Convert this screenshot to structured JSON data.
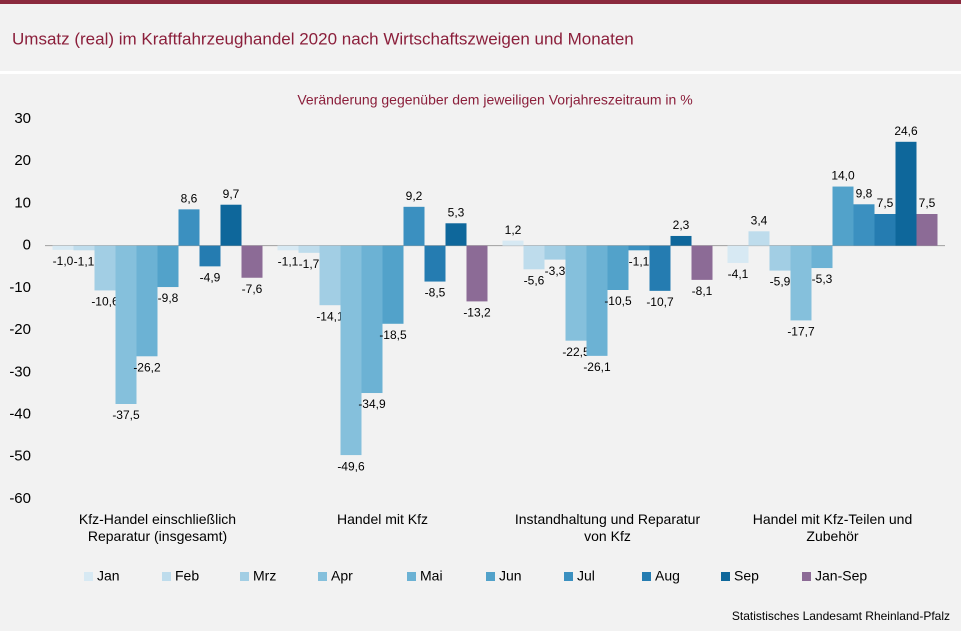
{
  "chart_data": {
    "type": "bar",
    "title": "Umsatz (real) im Kraftfahrzeughandel 2020 nach Wirtschaftszweigen und Monaten",
    "subtitle": "Veränderung gegenüber dem jeweiligen Vorjahreszeitraum in %",
    "source": "Statistisches Landesamt Rheinland-Pfalz",
    "categories": [
      "Kfz-Handel einschließlich Reparatur (insgesamt)",
      "Handel mit Kfz",
      "Instandhaltung und Reparatur von Kfz",
      "Handel mit Kfz-Teilen und Zubehör"
    ],
    "series": [
      {
        "name": "Jan",
        "color": "#d7e9f3",
        "values": [
          -1.0,
          -1.1,
          1.2,
          -4.1
        ],
        "value_labels": [
          "-1,0",
          "-1,1",
          "1,2",
          "-4,1"
        ]
      },
      {
        "name": "Feb",
        "color": "#bedcec",
        "values": [
          -1.1,
          -1.7,
          -5.6,
          3.4
        ],
        "value_labels": [
          "-1,1",
          "-1,7",
          "-5,6",
          "3,4"
        ]
      },
      {
        "name": "Mrz",
        "color": "#a2cee4",
        "values": [
          -10.6,
          -14.1,
          -3.3,
          -5.9
        ],
        "value_labels": [
          "-10,6",
          "-14,1",
          "-3,3",
          "-5,9"
        ]
      },
      {
        "name": "Apr",
        "color": "#85c0dc",
        "values": [
          -37.5,
          -49.6,
          -22.5,
          -17.7
        ],
        "value_labels": [
          "-37,5",
          "-49,6",
          "-22,5",
          "-17,7"
        ]
      },
      {
        "name": "Mai",
        "color": "#6cb2d4",
        "values": [
          -26.2,
          -34.9,
          -26.1,
          -5.3
        ],
        "value_labels": [
          "-26,2",
          "-34,9",
          "-26,1",
          "-5,3"
        ]
      },
      {
        "name": "Jun",
        "color": "#52a2ca",
        "values": [
          -9.8,
          -18.5,
          -10.5,
          14.0
        ],
        "value_labels": [
          "-9,8",
          "-18,5",
          "-10,5",
          "14,0"
        ]
      },
      {
        "name": "Jul",
        "color": "#3b90c0",
        "values": [
          8.6,
          9.2,
          -1.1,
          9.8
        ],
        "value_labels": [
          "8,6",
          "9,2",
          "-1,1",
          "9,8"
        ]
      },
      {
        "name": "Aug",
        "color": "#257cb1",
        "values": [
          -4.9,
          -8.5,
          -10.7,
          7.5
        ],
        "value_labels": [
          "-4,9",
          "-8,5",
          "-10,7",
          "7,5"
        ]
      },
      {
        "name": "Sep",
        "color": "#0e679b",
        "values": [
          9.7,
          5.3,
          2.3,
          24.6
        ],
        "value_labels": [
          "9,7",
          "5,3",
          "2,3",
          "24,6"
        ]
      },
      {
        "name": "Jan-Sep",
        "color": "#8c6b96",
        "values": [
          -7.6,
          -13.2,
          -8.1,
          7.5
        ],
        "value_labels": [
          "-7,6",
          "-13,2",
          "-8,1",
          "7,5"
        ]
      }
    ],
    "ylim": [
      -60,
      30
    ],
    "yticks": [
      30,
      20,
      10,
      0,
      -10,
      -20,
      -30,
      -40,
      -50,
      -60
    ],
    "grid": false
  }
}
